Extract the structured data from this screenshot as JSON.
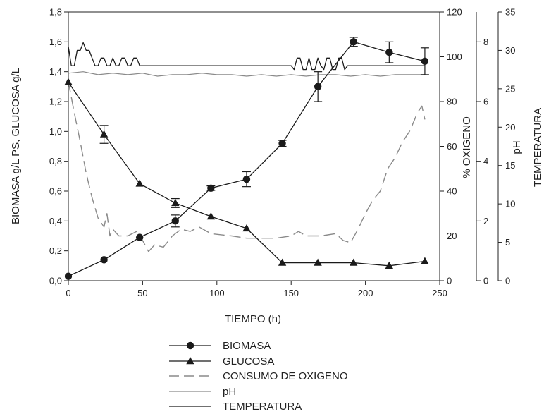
{
  "chart_data": {
    "type": "line",
    "title": "",
    "xlabel": "TIEMPO (h)",
    "xlim": [
      0,
      250
    ],
    "x_ticks": [
      "0",
      "50",
      "100",
      "150",
      "200",
      "250"
    ],
    "grid": false,
    "legend_position": "bottom",
    "axes": {
      "left": {
        "label": "BIOMASA g/L PS, GLUCOSA g/L",
        "ylim": [
          0,
          1.8
        ],
        "ticks": [
          "0,0",
          "0,2",
          "0,4",
          "0,6",
          "0,8",
          "1,0",
          "1,2",
          "1,4",
          "1,6",
          "1,8"
        ]
      },
      "oxygen": {
        "label": "% OXIGENO",
        "ylim": [
          0,
          120
        ],
        "ticks": [
          "0",
          "20",
          "40",
          "60",
          "80",
          "100",
          "120"
        ]
      },
      "ph": {
        "label": "pH",
        "ylim": [
          0,
          9
        ],
        "ticks": [
          "0",
          "2",
          "4",
          "6",
          "8"
        ]
      },
      "temperature": {
        "label": "TEMPERATURA",
        "ylim": [
          0,
          35
        ],
        "ticks": [
          "0",
          "5",
          "10",
          "15",
          "20",
          "25",
          "30",
          "35"
        ]
      }
    },
    "series": [
      {
        "name": "BIOMASA",
        "axis": "left",
        "marker": "circle",
        "x": [
          0,
          24,
          48,
          72,
          96,
          120,
          144,
          168,
          192,
          216,
          240
        ],
        "y": [
          0.03,
          0.14,
          0.29,
          0.4,
          0.62,
          0.68,
          0.92,
          1.3,
          1.6,
          1.53,
          1.47
        ],
        "error": [
          0,
          0,
          0,
          0.04,
          0.015,
          0.05,
          0.02,
          0.1,
          0.03,
          0.07,
          0.09
        ]
      },
      {
        "name": "GLUCOSA",
        "axis": "left",
        "marker": "triangle",
        "x": [
          0,
          24,
          48,
          72,
          96,
          120,
          144,
          168,
          192,
          216,
          240
        ],
        "y": [
          1.33,
          0.98,
          0.65,
          0.52,
          0.43,
          0.35,
          0.12,
          0.12,
          0.12,
          0.1,
          0.13
        ],
        "error": [
          0,
          0.06,
          0,
          0.03,
          0,
          0,
          0,
          0,
          0,
          0,
          0
        ]
      },
      {
        "name": "CONSUMO DE OXIGENO",
        "axis": "oxygen",
        "dash": "16,7",
        "x": [
          0,
          4,
          8,
          12,
          16,
          20,
          24,
          26,
          28,
          30,
          34,
          40,
          46,
          50,
          54,
          58,
          64,
          70,
          76,
          82,
          88,
          96,
          110,
          120,
          130,
          140,
          150,
          155,
          160,
          170,
          180,
          185,
          190,
          195,
          200,
          205,
          210,
          215,
          220,
          225,
          230,
          235,
          238,
          240
        ],
        "y": [
          89,
          75,
          62,
          48,
          37,
          28,
          24,
          30,
          20,
          23,
          20,
          20,
          22,
          18,
          13,
          16,
          15,
          20,
          23,
          22,
          24,
          21,
          20,
          19,
          19,
          19,
          20,
          22,
          20,
          20,
          21,
          18,
          17,
          23,
          30,
          36,
          40,
          50,
          55,
          62,
          67,
          75,
          78,
          72
        ]
      },
      {
        "name": "pH",
        "axis": "ph",
        "x": [
          0,
          10,
          20,
          30,
          40,
          50,
          60,
          70,
          80,
          90,
          100,
          110,
          120,
          130,
          140,
          150,
          160,
          170,
          180,
          190,
          200,
          210,
          220,
          230,
          240
        ],
        "y": [
          6.95,
          7.0,
          6.9,
          6.95,
          6.9,
          6.95,
          6.85,
          6.9,
          6.9,
          6.95,
          6.9,
          6.9,
          6.85,
          6.9,
          6.85,
          6.9,
          6.85,
          6.9,
          6.9,
          6.85,
          6.9,
          6.85,
          6.9,
          6.9,
          6.9
        ]
      },
      {
        "name": "TEMPERATURA",
        "axis": "temperature",
        "x": [
          0,
          2,
          4,
          6,
          8,
          10,
          12,
          14,
          16,
          18,
          20,
          22,
          24,
          26,
          28,
          30,
          32,
          34,
          36,
          38,
          40,
          42,
          44,
          46,
          48,
          50,
          150,
          152,
          154,
          156,
          158,
          160,
          162,
          164,
          166,
          168,
          170,
          172,
          174,
          176,
          178,
          180,
          182,
          184,
          186,
          188,
          190,
          240
        ],
        "y": [
          30.5,
          28.0,
          28.0,
          30.0,
          30.0,
          31.0,
          30.0,
          30.0,
          29.0,
          28.0,
          28.0,
          29.0,
          29.0,
          28.0,
          28.0,
          29.0,
          28.0,
          28.0,
          29.0,
          29.0,
          28.0,
          28.0,
          29.0,
          29.0,
          28.0,
          28.0,
          28.0,
          27.5,
          29.0,
          29.0,
          27.5,
          27.5,
          29.0,
          27.5,
          27.5,
          29.0,
          28.0,
          27.5,
          29.0,
          29.0,
          27.5,
          27.5,
          29.0,
          29.0,
          27.5,
          28.0,
          28.0,
          28.0
        ]
      }
    ]
  }
}
